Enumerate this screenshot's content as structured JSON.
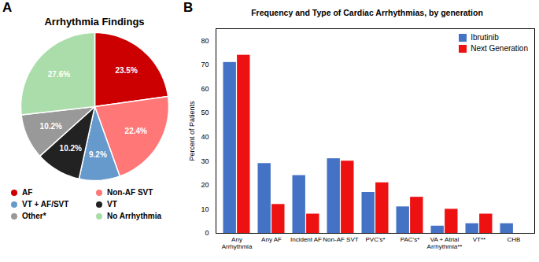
{
  "chart_data": [
    {
      "type": "pie",
      "title": "Arrhythmia Findings",
      "annotations": [
        "A"
      ],
      "categories": [
        "AF",
        "Non-AF SVT",
        "VT + AF/SVT",
        "VT",
        "Other*",
        "No Arrhythmia"
      ],
      "values": [
        23.5,
        22.4,
        9.2,
        10.2,
        10.2,
        27.6
      ],
      "value_labels": [
        "23.5%",
        "22.4%",
        "9.2%",
        "10.2%",
        "10.2%",
        "27.6%"
      ],
      "colors": [
        "#cc0000",
        "#ff7777",
        "#6699cc",
        "#222222",
        "#999999",
        "#aaddaa"
      ],
      "data_labels": true,
      "legend": "bottom"
    },
    {
      "type": "bar",
      "title": "Frequency and Type of Cardiac Arrhythmias, by generation",
      "annotations": [
        "B"
      ],
      "ylabel": "Percent of Patients",
      "categories": [
        "Any\nArrhythmia",
        "Any AF",
        "Incident AF",
        "Non-AF SVT",
        "PVC's*",
        "PAC's*",
        "VA + Atrial\nArrhythmia**",
        "VT**",
        "CHB"
      ],
      "series": [
        {
          "name": "Ibrutinib",
          "color": "#4472c4",
          "values": [
            71,
            29,
            24,
            31,
            17,
            11,
            3,
            4,
            4
          ]
        },
        {
          "name": "Next Generation",
          "color": "#ee1111",
          "values": [
            74,
            12,
            8,
            30,
            21,
            15,
            10,
            8,
            0
          ]
        }
      ],
      "ylim": [
        0,
        85
      ],
      "yticks": [
        0,
        10,
        20,
        30,
        40,
        50,
        60,
        70,
        80
      ],
      "grid": false,
      "legend": "upper right"
    }
  ]
}
